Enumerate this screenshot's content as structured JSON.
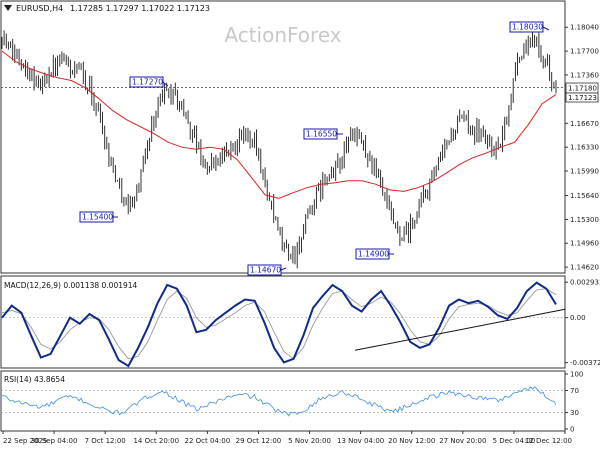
{
  "header": {
    "symbol": "EURUSD,H4",
    "ohlc": "1.17285 1.17297 1.17022 1.17123"
  },
  "watermark": "ActionForex",
  "colors": {
    "price": "#1a1a1a",
    "ma": "#dd2222",
    "macd": "#102a8c",
    "signal": "#999999",
    "rsi": "#3e8ee8",
    "label_box": "#1a1aa8",
    "grid": "#aaaaaa"
  },
  "chart_data": [
    {
      "type": "candlestick",
      "panel": "price",
      "ylim": [
        1.1455,
        1.184
      ],
      "yticks": [
        "1.18040",
        "1.17700",
        "1.17360",
        "1.17010",
        "1.16670",
        "1.16330",
        "1.15990",
        "1.15640",
        "1.15300",
        "1.14960",
        "1.14620"
      ],
      "x_tick_labels": [
        "22 Sep 2025",
        "30 Sep 04:00",
        "7 Oct 12:00",
        "14 Oct 20:00",
        "22 Oct 04:00",
        "29 Oct 12:00",
        "5 Nov 20:00",
        "13 Nov 04:00",
        "20 Nov 12:00",
        "27 Nov 20:00",
        "5 Dec 04:00",
        "12 Dec 12:00"
      ],
      "close_path": [
        1.179,
        1.177,
        1.176,
        1.1735,
        1.172,
        1.1745,
        1.1755,
        1.1745,
        1.174,
        1.1715,
        1.168,
        1.162,
        1.158,
        1.1545,
        1.1575,
        1.164,
        1.1695,
        1.1715,
        1.17,
        1.1675,
        1.164,
        1.16,
        1.1615,
        1.1625,
        1.1635,
        1.165,
        1.1645,
        1.1585,
        1.153,
        1.149,
        1.1475,
        1.151,
        1.1555,
        1.158,
        1.1595,
        1.162,
        1.1655,
        1.164,
        1.161,
        1.1575,
        1.153,
        1.15,
        1.1515,
        1.155,
        1.158,
        1.161,
        1.1645,
        1.167,
        1.1665,
        1.1655,
        1.164,
        1.1625,
        1.168,
        1.176,
        1.1775,
        1.179,
        1.175,
        1.1715
      ],
      "moving_average": [
        1.177,
        1.1755,
        1.1745,
        1.1738,
        1.1732,
        1.1728,
        1.1718,
        1.1702,
        1.1685,
        1.1672,
        1.1662,
        1.1652,
        1.164,
        1.1633,
        1.163,
        1.1633,
        1.163,
        1.1615,
        1.159,
        1.1565,
        1.156,
        1.1568,
        1.1575,
        1.158,
        1.1582,
        1.1585,
        1.1585,
        1.158,
        1.1572,
        1.157,
        1.1575,
        1.1583,
        1.1595,
        1.1608,
        1.1618,
        1.1625,
        1.1633,
        1.164,
        1.1665,
        1.1695,
        1.1708
      ],
      "annotations": [
        {
          "label": "1.17270",
          "value": 1.1727
        },
        {
          "label": "1.15400",
          "value": 1.154
        },
        {
          "label": "1.14670",
          "value": 1.1467
        },
        {
          "label": "1.16550",
          "value": 1.1655
        },
        {
          "label": "1.14900",
          "value": 1.149
        },
        {
          "label": "1.18030",
          "value": 1.1803
        }
      ],
      "current_price": {
        "label": "1.17180",
        "overlap_label": "1.17123",
        "value": 1.17123
      },
      "reference_line": 1.1718
    },
    {
      "type": "line",
      "panel": "macd",
      "title": "MACD(12,26,9) 0.001138 0.001914",
      "ylim": [
        -0.004,
        0.0032
      ],
      "yticks": [
        "0.002933",
        "0.00",
        "-0.003724"
      ],
      "series": [
        {
          "values": [
            0.0,
            0.001,
            0.0004,
            -0.0015,
            -0.0033,
            -0.003,
            -0.0015,
            0.0,
            -0.0005,
            0.0003,
            -0.0002,
            -0.0018,
            -0.0035,
            -0.004,
            -0.0025,
            -0.0008,
            0.0012,
            0.0027,
            0.0024,
            0.001,
            -0.0012,
            -0.001,
            -0.0002,
            0.0004,
            0.001,
            0.0015,
            0.0014,
            -0.0004,
            -0.0025,
            -0.0037,
            -0.0034,
            -0.0015,
            0.0008,
            0.0018,
            0.0027,
            0.0022,
            0.001,
            0.0005,
            0.0015,
            0.0022,
            0.001,
            -0.0004,
            -0.002,
            -0.0025,
            -0.0022,
            -0.0008,
            0.001,
            0.0015,
            0.0012,
            0.0014,
            0.0009,
            0.0002,
            -0.0001,
            0.0008,
            0.0022,
            0.0029,
            0.0024,
            0.0011
          ]
        },
        {
          "values": [
            0.0004,
            0.0006,
            0.0003,
            -0.0008,
            -0.0022,
            -0.0026,
            -0.002,
            -0.001,
            -0.0004,
            0.0,
            -0.0001,
            -0.001,
            -0.0024,
            -0.0034,
            -0.0032,
            -0.002,
            -0.0002,
            0.0015,
            0.0022,
            0.0016,
            0.0,
            -0.0008,
            -0.0006,
            -0.0001,
            0.0004,
            0.001,
            0.0013,
            0.0005,
            -0.0012,
            -0.0028,
            -0.0034,
            -0.0025,
            -0.0006,
            0.0008,
            0.002,
            0.0022,
            0.0015,
            0.0009,
            0.0012,
            0.0017,
            0.0013,
            0.0003,
            -0.001,
            -0.002,
            -0.0022,
            -0.0015,
            -0.0001,
            0.0009,
            0.0011,
            0.0012,
            0.001,
            0.0005,
            0.0002,
            0.0004,
            0.0014,
            0.0023,
            0.0024,
            0.0019
          ]
        }
      ],
      "trendline": [
        -0.0027,
        0.0007
      ]
    },
    {
      "type": "line",
      "panel": "rsi",
      "title": "RSI(14) 43.8654",
      "ylim": [
        0,
        100
      ],
      "yticks": [
        "100",
        "70",
        "30",
        "0"
      ],
      "levels": [
        70,
        30
      ],
      "series": [
        {
          "values": [
            60,
            52,
            48,
            43,
            40,
            45,
            55,
            58,
            54,
            46,
            38,
            33,
            29,
            35,
            48,
            58,
            68,
            65,
            55,
            44,
            36,
            42,
            50,
            56,
            60,
            62,
            58,
            47,
            36,
            28,
            26,
            34,
            46,
            56,
            62,
            67,
            63,
            54,
            46,
            39,
            33,
            36,
            44,
            52,
            58,
            62,
            66,
            64,
            60,
            57,
            55,
            52,
            59,
            68,
            72,
            74,
            60,
            44
          ]
        }
      ]
    }
  ]
}
